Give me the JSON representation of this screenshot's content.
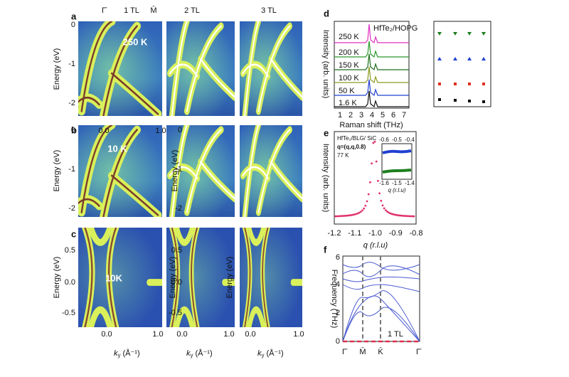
{
  "header": {
    "gamma": "Γ̄",
    "m": "M̄",
    "columns": [
      "1 TL",
      "2 TL",
      "3 TL"
    ]
  },
  "panel_labels": [
    "a",
    "b",
    "c",
    "d",
    "e",
    "f"
  ],
  "arpes": {
    "energy_label": "Energy (eV)",
    "k_symbol": "k",
    "k_sub": "y",
    "k_unit": "(Å⁻¹)",
    "kticks": [
      "0.0",
      "1.0"
    ],
    "rows": [
      {
        "temperature": "250 K",
        "yticks": [
          "0",
          "-1",
          "-2"
        ]
      },
      {
        "temperature": "10 K",
        "yticks": [
          "0",
          "-1",
          "-2"
        ]
      },
      {
        "temperature": "10K",
        "yticks": [
          "0.5",
          "0.0",
          "-0.5"
        ]
      }
    ]
  },
  "raman": {
    "sample": "HfTe₂/HOPG",
    "temperatures": [
      "250 K",
      "200 K",
      "150 K",
      "100 K",
      "50 K",
      "1.6 K"
    ],
    "y_label": "Intensity (arb. units)",
    "x_label": "Raman shift (THz)",
    "xticks": [
      "1",
      "2",
      "3",
      "4",
      "5",
      "6",
      "7"
    ]
  },
  "diffraction": {
    "sample": "HfTe₂/BLG/ SiC",
    "q_vector": "q=(q,q,0.8)",
    "temperature": "77 K",
    "inset_top_ticks": [
      "-0.6",
      "-0.5",
      "-0.4"
    ],
    "inset_bottom_ticks": [
      "-1.6",
      "-1.5",
      "-1.4"
    ],
    "inset_x_label": "q (r.l.u)",
    "y_label": "Intensity (arb. units)",
    "xticks": [
      "-1.2",
      "-1.1",
      "-1.0",
      "-0.9",
      "-0.8"
    ],
    "x_label": "q (r.l.u)"
  },
  "phonon": {
    "y_label": "Frequency (THz)",
    "yticks": [
      "0",
      "2",
      "4",
      "6"
    ],
    "xticks": [
      "Γ̄",
      "M̄",
      "K̄",
      "Γ̄"
    ],
    "annotation": "1 TL"
  }
}
